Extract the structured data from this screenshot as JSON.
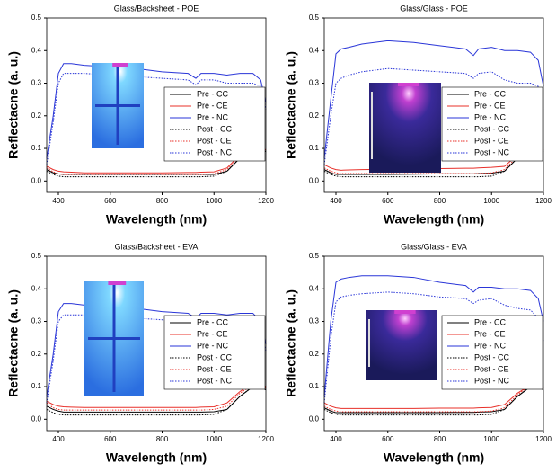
{
  "chart_data": [
    {
      "type": "line",
      "title": "Glass/Backsheet - POE",
      "x_label": "Wavelength (nm)",
      "y_label": "Reflectacne (a. u.)",
      "x": [
        355,
        380,
        400,
        420,
        450,
        500,
        600,
        700,
        800,
        900,
        930,
        950,
        1000,
        1050,
        1100,
        1150,
        1180,
        1200
      ],
      "xlim": [
        355,
        1200
      ],
      "ylim": [
        -0.035,
        0.5
      ],
      "xticks": [
        400,
        600,
        800,
        1000,
        1200
      ],
      "yticks": [
        {
          "value": 0,
          "label": "0.0"
        },
        0.1,
        0.2,
        0.3,
        0.4,
        0.5
      ],
      "series": [
        {
          "name": "Pre - CC",
          "color": "#000000",
          "style": "solid",
          "values": [
            0.035,
            0.025,
            0.022,
            0.02,
            0.02,
            0.02,
            0.02,
            0.02,
            0.02,
            0.02,
            0.02,
            0.02,
            0.02,
            0.03,
            0.07,
            0.1,
            0.1,
            0.09
          ]
        },
        {
          "name": "Pre - CE",
          "color": "#e8302a",
          "style": "solid",
          "values": [
            0.045,
            0.035,
            0.03,
            0.028,
            0.027,
            0.025,
            0.025,
            0.025,
            0.025,
            0.026,
            0.026,
            0.027,
            0.028,
            0.04,
            0.08,
            0.105,
            0.105,
            0.095
          ]
        },
        {
          "name": "Pre - NC",
          "color": "#2a36d8",
          "style": "solid",
          "values": [
            0.07,
            0.2,
            0.33,
            0.36,
            0.36,
            0.355,
            0.35,
            0.345,
            0.335,
            0.33,
            0.315,
            0.33,
            0.33,
            0.325,
            0.33,
            0.33,
            0.31,
            0.24
          ]
        },
        {
          "name": "Post - CC",
          "color": "#000000",
          "style": "dotted",
          "values": [
            0.03,
            0.02,
            0.015,
            0.013,
            0.013,
            0.013,
            0.013,
            0.013,
            0.013,
            0.013,
            0.013,
            0.013,
            0.015,
            0.03,
            0.07,
            0.1,
            0.1,
            0.09
          ]
        },
        {
          "name": "Post - CE",
          "color": "#e8302a",
          "style": "dotted",
          "values": [
            0.04,
            0.028,
            0.022,
            0.02,
            0.02,
            0.02,
            0.02,
            0.02,
            0.02,
            0.02,
            0.02,
            0.02,
            0.022,
            0.035,
            0.075,
            0.105,
            0.105,
            0.095
          ]
        },
        {
          "name": "Post - NC",
          "color": "#2a36d8",
          "style": "dotted",
          "values": [
            0.05,
            0.18,
            0.3,
            0.33,
            0.33,
            0.33,
            0.325,
            0.32,
            0.315,
            0.31,
            0.295,
            0.31,
            0.31,
            0.3,
            0.3,
            0.3,
            0.29,
            0.22
          ]
        }
      ]
    },
    {
      "type": "line",
      "title": "Glass/Glass - POE",
      "x_label": "Wavelength (nm)",
      "y_label": "Reflectacne (a. u.)",
      "x": [
        355,
        380,
        400,
        420,
        450,
        500,
        600,
        700,
        800,
        900,
        930,
        950,
        1000,
        1050,
        1100,
        1150,
        1180,
        1200
      ],
      "xlim": [
        355,
        1200
      ],
      "ylim": [
        -0.035,
        0.5
      ],
      "xticks": [
        400,
        600,
        800,
        1000,
        1200
      ],
      "yticks": [
        {
          "value": 0,
          "label": "0.0"
        },
        0.1,
        0.2,
        0.3,
        0.4,
        0.5
      ],
      "series": [
        {
          "name": "Pre - CC",
          "color": "#000000",
          "style": "solid",
          "values": [
            0.035,
            0.025,
            0.02,
            0.02,
            0.02,
            0.02,
            0.02,
            0.021,
            0.022,
            0.022,
            0.022,
            0.023,
            0.024,
            0.03,
            0.07,
            0.1,
            0.1,
            0.09
          ]
        },
        {
          "name": "Pre - CE",
          "color": "#e8302a",
          "style": "solid",
          "values": [
            0.05,
            0.04,
            0.035,
            0.033,
            0.034,
            0.035,
            0.036,
            0.037,
            0.038,
            0.039,
            0.039,
            0.04,
            0.042,
            0.045,
            0.08,
            0.105,
            0.105,
            0.095
          ]
        },
        {
          "name": "Pre - NC",
          "color": "#2a36d8",
          "style": "solid",
          "values": [
            0.07,
            0.25,
            0.39,
            0.405,
            0.41,
            0.42,
            0.43,
            0.425,
            0.415,
            0.405,
            0.385,
            0.405,
            0.41,
            0.4,
            0.4,
            0.395,
            0.37,
            0.29
          ]
        },
        {
          "name": "Post - CC",
          "color": "#000000",
          "style": "dotted",
          "values": [
            0.03,
            0.02,
            0.015,
            0.013,
            0.013,
            0.013,
            0.013,
            0.013,
            0.013,
            0.013,
            0.013,
            0.013,
            0.015,
            0.03,
            0.07,
            0.1,
            0.1,
            0.09
          ]
        },
        {
          "name": "Post - CE",
          "color": "#e8302a",
          "style": "dotted",
          "values": [
            0.04,
            0.03,
            0.025,
            0.023,
            0.023,
            0.023,
            0.023,
            0.023,
            0.023,
            0.023,
            0.023,
            0.023,
            0.025,
            0.035,
            0.075,
            0.105,
            0.105,
            0.095
          ]
        },
        {
          "name": "Post - NC",
          "color": "#2a36d8",
          "style": "dotted",
          "values": [
            0.05,
            0.2,
            0.3,
            0.315,
            0.325,
            0.335,
            0.345,
            0.34,
            0.335,
            0.33,
            0.315,
            0.33,
            0.335,
            0.31,
            0.3,
            0.3,
            0.29,
            0.22
          ]
        }
      ]
    },
    {
      "type": "line",
      "title": "Glass/Backsheet - EVA",
      "x_label": "Wavelength (nm)",
      "y_label": "Reflectacne (a. u.)",
      "x": [
        355,
        380,
        400,
        420,
        450,
        500,
        600,
        700,
        800,
        900,
        930,
        950,
        1000,
        1050,
        1100,
        1150,
        1180,
        1200
      ],
      "xlim": [
        355,
        1200
      ],
      "ylim": [
        -0.035,
        0.5
      ],
      "xticks": [
        400,
        600,
        800,
        1000,
        1200
      ],
      "yticks": [
        {
          "value": 0,
          "label": "0.0"
        },
        0.1,
        0.2,
        0.3,
        0.4,
        0.5
      ],
      "series": [
        {
          "name": "Pre - CC",
          "color": "#000000",
          "style": "solid",
          "values": [
            0.04,
            0.03,
            0.025,
            0.022,
            0.022,
            0.022,
            0.022,
            0.022,
            0.022,
            0.022,
            0.022,
            0.022,
            0.023,
            0.03,
            0.07,
            0.1,
            0.1,
            0.09
          ]
        },
        {
          "name": "Pre - CE",
          "color": "#e8302a",
          "style": "solid",
          "values": [
            0.055,
            0.045,
            0.04,
            0.038,
            0.037,
            0.036,
            0.036,
            0.036,
            0.036,
            0.036,
            0.036,
            0.037,
            0.038,
            0.05,
            0.085,
            0.11,
            0.11,
            0.1
          ]
        },
        {
          "name": "Pre - NC",
          "color": "#2a36d8",
          "style": "solid",
          "values": [
            0.07,
            0.2,
            0.33,
            0.355,
            0.355,
            0.35,
            0.345,
            0.34,
            0.33,
            0.325,
            0.31,
            0.325,
            0.325,
            0.32,
            0.325,
            0.325,
            0.3,
            0.23
          ]
        },
        {
          "name": "Post - CC",
          "color": "#000000",
          "style": "dotted",
          "values": [
            0.03,
            0.02,
            0.015,
            0.013,
            0.013,
            0.013,
            0.013,
            0.013,
            0.013,
            0.013,
            0.013,
            0.013,
            0.015,
            0.03,
            0.07,
            0.1,
            0.1,
            0.09
          ]
        },
        {
          "name": "Post - CE",
          "color": "#e8302a",
          "style": "dotted",
          "values": [
            0.05,
            0.035,
            0.03,
            0.028,
            0.028,
            0.028,
            0.028,
            0.028,
            0.028,
            0.028,
            0.028,
            0.028,
            0.03,
            0.04,
            0.08,
            0.105,
            0.105,
            0.095
          ]
        },
        {
          "name": "Post - NC",
          "color": "#2a36d8",
          "style": "dotted",
          "values": [
            0.05,
            0.18,
            0.3,
            0.32,
            0.32,
            0.32,
            0.315,
            0.31,
            0.305,
            0.3,
            0.29,
            0.3,
            0.3,
            0.29,
            0.29,
            0.29,
            0.28,
            0.21
          ]
        }
      ]
    },
    {
      "type": "line",
      "title": "Glass/Glass - EVA",
      "x_label": "Wavelength (nm)",
      "y_label": "Reflectacne (a. u.)",
      "x": [
        355,
        380,
        400,
        420,
        450,
        500,
        600,
        700,
        800,
        900,
        930,
        950,
        1000,
        1050,
        1100,
        1150,
        1180,
        1200
      ],
      "xlim": [
        355,
        1200
      ],
      "ylim": [
        -0.035,
        0.5
      ],
      "xticks": [
        400,
        600,
        800,
        1000,
        1200
      ],
      "yticks": [
        {
          "value": 0,
          "label": "0.0"
        },
        0.1,
        0.2,
        0.3,
        0.4,
        0.5
      ],
      "series": [
        {
          "name": "Pre - CC",
          "color": "#000000",
          "style": "solid",
          "values": [
            0.035,
            0.025,
            0.02,
            0.02,
            0.02,
            0.02,
            0.02,
            0.02,
            0.02,
            0.021,
            0.021,
            0.022,
            0.023,
            0.03,
            0.07,
            0.1,
            0.1,
            0.09
          ]
        },
        {
          "name": "Pre - CE",
          "color": "#e8302a",
          "style": "solid",
          "values": [
            0.05,
            0.04,
            0.035,
            0.033,
            0.033,
            0.033,
            0.033,
            0.033,
            0.034,
            0.034,
            0.034,
            0.035,
            0.036,
            0.045,
            0.08,
            0.105,
            0.105,
            0.095
          ]
        },
        {
          "name": "Pre - NC",
          "color": "#2a36d8",
          "style": "solid",
          "values": [
            0.07,
            0.3,
            0.42,
            0.43,
            0.435,
            0.44,
            0.44,
            0.435,
            0.42,
            0.41,
            0.39,
            0.405,
            0.405,
            0.4,
            0.4,
            0.395,
            0.37,
            0.3
          ]
        },
        {
          "name": "Post - CC",
          "color": "#000000",
          "style": "dotted",
          "values": [
            0.03,
            0.02,
            0.015,
            0.013,
            0.013,
            0.013,
            0.013,
            0.013,
            0.013,
            0.013,
            0.013,
            0.013,
            0.015,
            0.03,
            0.07,
            0.1,
            0.1,
            0.09
          ]
        },
        {
          "name": "Post - CE",
          "color": "#e8302a",
          "style": "dotted",
          "values": [
            0.04,
            0.03,
            0.025,
            0.023,
            0.023,
            0.023,
            0.023,
            0.023,
            0.023,
            0.023,
            0.023,
            0.023,
            0.025,
            0.035,
            0.075,
            0.105,
            0.105,
            0.095
          ]
        },
        {
          "name": "Post - NC",
          "color": "#2a36d8",
          "style": "dotted",
          "values": [
            0.05,
            0.25,
            0.36,
            0.375,
            0.38,
            0.385,
            0.39,
            0.385,
            0.375,
            0.37,
            0.355,
            0.365,
            0.37,
            0.35,
            0.34,
            0.335,
            0.31,
            0.24
          ]
        }
      ]
    }
  ]
}
